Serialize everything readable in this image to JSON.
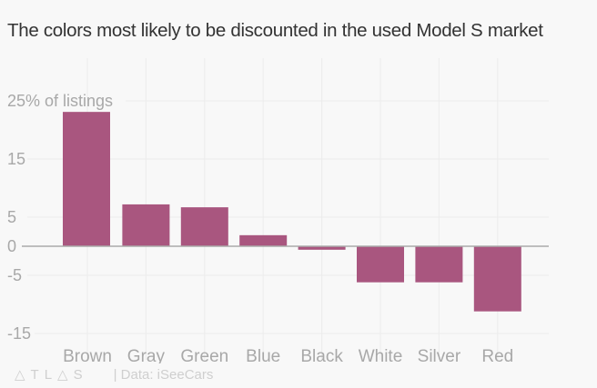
{
  "chart_data": {
    "type": "bar",
    "title": "The colors most likely to be discounted in the used Model S market",
    "xlabel": "",
    "ylabel": "% of listings",
    "ylim": [
      -18,
      25
    ],
    "yticks": [
      25,
      15,
      5,
      0,
      -5,
      -15
    ],
    "ytick_labels": [
      "25% of listings",
      "15",
      "5",
      "0",
      "-5",
      "-15"
    ],
    "categories": [
      "Brown",
      "Gray",
      "Green",
      "Blue",
      "Black",
      "White",
      "Silver",
      "Red"
    ],
    "values": [
      23.1,
      7.2,
      6.7,
      1.9,
      -0.6,
      -6.2,
      -6.2,
      -11.2
    ],
    "grid": true,
    "bar_color": "#a9567f",
    "source": "| Data: iSeeCars"
  },
  "footer": {
    "logo": "ATLAS",
    "source": "| Data: iSeeCars"
  }
}
